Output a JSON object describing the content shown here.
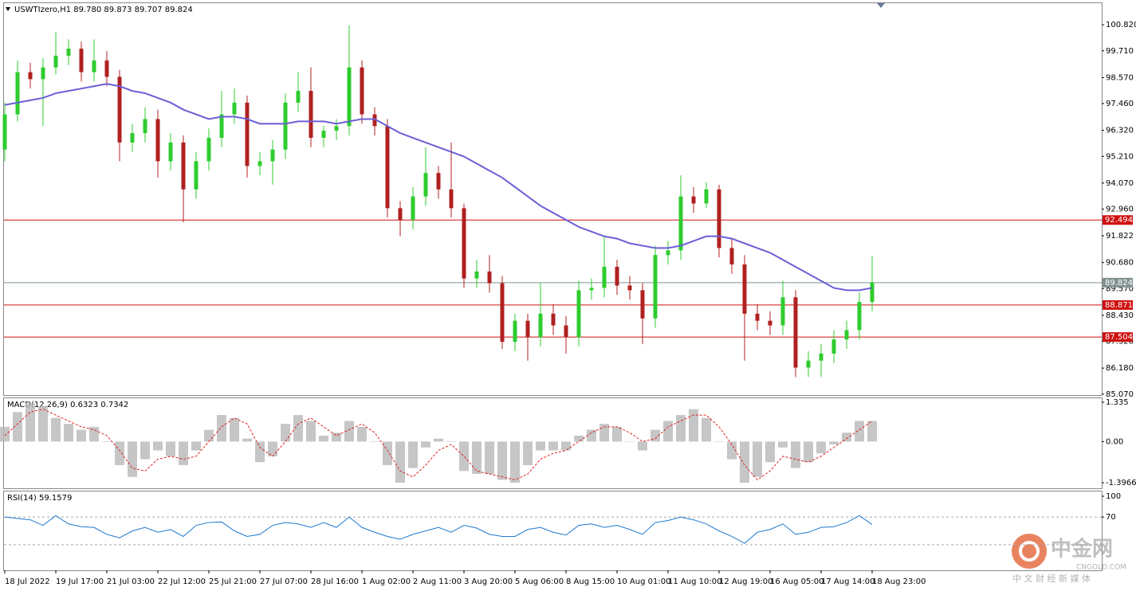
{
  "chart_data": [
    {
      "type": "candlestick",
      "title": "USWTIzero,H1  89.780 89.873 89.707 89.824",
      "categories": [
        "18 Jul 2022",
        null,
        null,
        null,
        "19 Jul 17:00",
        null,
        null,
        null,
        "21 Jul 03:00",
        null,
        null,
        null,
        "22 Jul 12:00",
        null,
        null,
        null,
        "25 Jul 21:00",
        null,
        null,
        null,
        "27 Jul 07:00",
        null,
        null,
        null,
        "28 Jul 16:00",
        null,
        null,
        null,
        "1 Aug 02:00",
        null,
        null,
        null,
        "2 Aug 11:00",
        null,
        null,
        null,
        "3 Aug 20:00",
        null,
        null,
        null,
        "5 Aug 06:00",
        null,
        null,
        null,
        "8 Aug 15:00",
        null,
        null,
        null,
        "10 Aug 01:00",
        null,
        null,
        null,
        "11 Aug 10:00",
        null,
        null,
        null,
        "12 Aug 19:00",
        null,
        null,
        null,
        "16 Aug 05:00",
        null,
        null,
        null,
        "17 Aug 14:00",
        null,
        null,
        null,
        "18 Aug 23:00"
      ],
      "open": [
        95.5,
        97.0,
        98.8,
        98.5,
        99.0,
        99.5,
        99.8,
        98.8,
        99.3,
        98.6,
        95.8,
        96.2,
        96.8,
        95.0,
        95.8,
        93.8,
        95.0,
        96.0,
        97.0,
        97.5,
        94.8,
        95.0,
        95.5,
        97.5,
        98.0,
        96.0,
        96.3,
        96.5,
        99.0,
        97.0,
        96.5,
        93.0,
        92.5,
        93.5,
        94.5,
        93.8,
        93.0,
        90.0,
        90.3,
        89.8,
        87.3,
        88.2,
        87.5,
        88.5,
        88.0,
        87.5,
        89.5,
        89.6,
        90.5,
        89.7,
        89.5,
        88.3,
        91.0,
        91.2,
        93.5,
        93.2,
        93.8,
        91.3,
        90.6,
        88.5,
        88.2,
        88.0,
        89.2,
        86.2,
        86.5,
        86.8,
        87.4,
        87.8,
        89.0
      ],
      "high": [
        97.5,
        99.3,
        99.2,
        99.4,
        100.5,
        100.2,
        100.1,
        100.2,
        99.7,
        98.9,
        96.6,
        97.3,
        97.2,
        96.2,
        96.1,
        95.4,
        96.4,
        98.0,
        98.1,
        97.8,
        95.4,
        95.9,
        97.9,
        98.8,
        99.0,
        96.5,
        96.8,
        100.8,
        99.3,
        97.3,
        96.8,
        93.3,
        93.9,
        95.6,
        94.8,
        95.8,
        93.2,
        90.8,
        91.0,
        90.1,
        88.5,
        88.5,
        89.8,
        88.9,
        88.4,
        89.9,
        90.0,
        91.8,
        90.8,
        90.1,
        89.8,
        91.4,
        91.6,
        94.4,
        93.9,
        94.1,
        94.0,
        91.7,
        91.0,
        88.9,
        88.6,
        89.9,
        89.5,
        86.9,
        87.2,
        87.8,
        88.2,
        89.4,
        90.95
      ],
      "low": [
        95.0,
        96.7,
        98.1,
        96.5,
        98.7,
        99.1,
        98.4,
        98.4,
        98.2,
        95.0,
        95.4,
        95.8,
        94.3,
        94.6,
        92.4,
        93.4,
        94.6,
        95.6,
        96.6,
        94.3,
        94.4,
        94.0,
        95.1,
        97.1,
        95.6,
        95.6,
        95.9,
        96.1,
        96.6,
        96.1,
        92.6,
        91.8,
        92.1,
        93.1,
        93.4,
        92.6,
        89.6,
        89.6,
        89.4,
        87.0,
        86.9,
        86.5,
        87.1,
        87.6,
        86.8,
        87.1,
        89.1,
        89.2,
        89.3,
        89.1,
        87.2,
        87.9,
        90.6,
        90.8,
        92.8,
        93.0,
        90.9,
        90.2,
        86.5,
        87.8,
        87.6,
        87.6,
        85.8,
        85.8,
        85.8,
        86.4,
        87.0,
        87.4,
        88.6
      ],
      "close": [
        97.0,
        98.8,
        98.5,
        99.0,
        99.5,
        99.8,
        98.8,
        99.3,
        98.6,
        95.8,
        96.2,
        96.8,
        95.0,
        95.8,
        93.8,
        95.0,
        96.0,
        97.0,
        97.5,
        94.8,
        95.0,
        95.5,
        97.5,
        98.0,
        96.0,
        96.3,
        96.5,
        99.0,
        97.0,
        96.5,
        93.0,
        92.5,
        93.5,
        94.5,
        93.8,
        93.0,
        90.0,
        90.3,
        89.8,
        87.3,
        88.2,
        87.5,
        88.5,
        88.0,
        87.5,
        89.5,
        89.6,
        90.5,
        89.7,
        89.5,
        88.3,
        91.0,
        91.2,
        93.5,
        93.2,
        93.8,
        91.3,
        90.6,
        88.5,
        88.2,
        88.0,
        89.2,
        86.2,
        86.5,
        86.8,
        87.4,
        87.8,
        89.0,
        89.824
      ],
      "up_color": "#2ecc2e",
      "down_color": "#b02020",
      "series": [
        {
          "color": "#6a5fd6",
          "values": [
            97.4,
            97.5,
            97.6,
            97.7,
            97.9,
            98.0,
            98.1,
            98.2,
            98.3,
            98.2,
            98.0,
            97.9,
            97.7,
            97.5,
            97.2,
            97.0,
            96.8,
            96.9,
            96.9,
            96.8,
            96.6,
            96.6,
            96.6,
            96.7,
            96.7,
            96.7,
            96.6,
            96.7,
            96.8,
            96.8,
            96.5,
            96.2,
            96.0,
            95.8,
            95.6,
            95.4,
            95.2,
            94.9,
            94.6,
            94.3,
            93.9,
            93.5,
            93.1,
            92.8,
            92.5,
            92.2,
            92.0,
            91.8,
            91.7,
            91.5,
            91.4,
            91.3,
            91.3,
            91.4,
            91.6,
            91.8,
            91.8,
            91.7,
            91.5,
            91.3,
            91.1,
            90.8,
            90.5,
            90.2,
            89.9,
            89.6,
            89.5,
            89.5,
            89.6
          ]
        }
      ],
      "levels": [
        {
          "value": 92.494,
          "color": "#d01010"
        },
        {
          "value": 89.824,
          "color": "#7f9090"
        },
        {
          "value": 88.871,
          "color": "#d01010"
        },
        {
          "value": 87.504,
          "color": "#d01010"
        }
      ],
      "ylim": [
        85.03,
        101.74
      ],
      "yticks": [
        {
          "value": 100.82,
          "label": "100.820"
        },
        {
          "value": 99.71,
          "label": "99.710"
        },
        {
          "value": 98.57,
          "label": "98.570"
        },
        {
          "value": 97.46,
          "label": "97.460"
        },
        {
          "value": 96.32,
          "label": "96.320"
        },
        {
          "value": 95.21,
          "label": "95.210"
        },
        {
          "value": 94.07,
          "label": "94.070"
        },
        {
          "value": 92.96,
          "label": "92.960"
        },
        {
          "value": 91.822,
          "label": "91.822"
        },
        {
          "value": 90.68,
          "label": "90.680"
        },
        {
          "value": 89.57,
          "label": "89.570"
        },
        {
          "value": 88.43,
          "label": "88.430"
        },
        {
          "value": 87.32,
          "label": "87.320"
        },
        {
          "value": 86.18,
          "label": "86.180"
        },
        {
          "value": 85.07,
          "label": "85.070"
        }
      ]
    },
    {
      "type": "macd",
      "title": "MACD(12,26,9) 0.6323 0.7342",
      "histogram": [
        0.5,
        1.0,
        1.3,
        1.2,
        0.8,
        0.6,
        0.4,
        0.5,
        0.0,
        -0.8,
        -1.2,
        -0.6,
        -0.3,
        -0.5,
        -0.8,
        -0.3,
        0.4,
        0.9,
        0.8,
        0.1,
        -0.7,
        -0.5,
        0.6,
        0.9,
        0.7,
        0.2,
        0.3,
        0.7,
        0.5,
        0.0,
        -0.8,
        -1.4,
        -0.9,
        -0.2,
        0.1,
        0.0,
        -1.0,
        -1.1,
        -1.1,
        -1.3,
        -1.4,
        -0.8,
        -0.3,
        -0.3,
        -0.3,
        0.2,
        0.4,
        0.6,
        0.5,
        0.0,
        -0.3,
        0.4,
        0.7,
        0.9,
        1.1,
        0.8,
        0.0,
        -0.6,
        -1.4,
        -1.2,
        -0.7,
        -0.2,
        -0.9,
        -0.7,
        -0.4,
        -0.1,
        0.3,
        0.7,
        0.7
      ],
      "signal": [
        0.2,
        0.6,
        1.0,
        1.1,
        0.9,
        0.7,
        0.5,
        0.4,
        0.2,
        -0.3,
        -0.9,
        -1.0,
        -0.6,
        -0.5,
        -0.6,
        -0.5,
        0.0,
        0.5,
        0.8,
        0.6,
        -0.2,
        -0.5,
        0.0,
        0.6,
        0.8,
        0.5,
        0.2,
        0.4,
        0.6,
        0.3,
        -0.3,
        -1.0,
        -1.2,
        -0.8,
        -0.3,
        -0.1,
        -0.5,
        -1.0,
        -1.1,
        -1.2,
        -1.3,
        -1.1,
        -0.6,
        -0.4,
        -0.3,
        0.0,
        0.3,
        0.5,
        0.5,
        0.3,
        0.0,
        0.1,
        0.5,
        0.7,
        0.9,
        0.9,
        0.5,
        -0.1,
        -0.8,
        -1.3,
        -1.0,
        -0.5,
        -0.6,
        -0.7,
        -0.5,
        -0.2,
        0.1,
        0.4,
        0.7
      ],
      "histogram_color": "#b8b8b8",
      "signal_color": "#e02020",
      "ylim": [
        -1.3966,
        1.335
      ],
      "yticks": [
        1.335,
        {
          "value": 0,
          "label": "0.00"
        },
        -1.3966
      ]
    },
    {
      "type": "line",
      "title": "RSI(14) 59.1579",
      "values": [
        70,
        68,
        66,
        58,
        72,
        60,
        56,
        55,
        45,
        40,
        50,
        55,
        48,
        52,
        42,
        58,
        62,
        63,
        50,
        42,
        45,
        58,
        62,
        60,
        55,
        62,
        55,
        70,
        55,
        48,
        42,
        38,
        45,
        50,
        55,
        48,
        58,
        54,
        45,
        42,
        42,
        52,
        55,
        48,
        44,
        58,
        60,
        55,
        58,
        52,
        45,
        62,
        65,
        70,
        66,
        60,
        50,
        42,
        32,
        48,
        52,
        60,
        45,
        48,
        55,
        56,
        62,
        72,
        59.1579
      ],
      "color": "#1e78d0",
      "levels": [
        70,
        30
      ],
      "ylim": [
        0,
        100
      ],
      "yticks": [
        100,
        70
      ]
    }
  ],
  "watermark": {
    "name": "中金网",
    "site": "CNGOLD.COM",
    "tagline": "中 文 财 经 新 媒 体"
  }
}
